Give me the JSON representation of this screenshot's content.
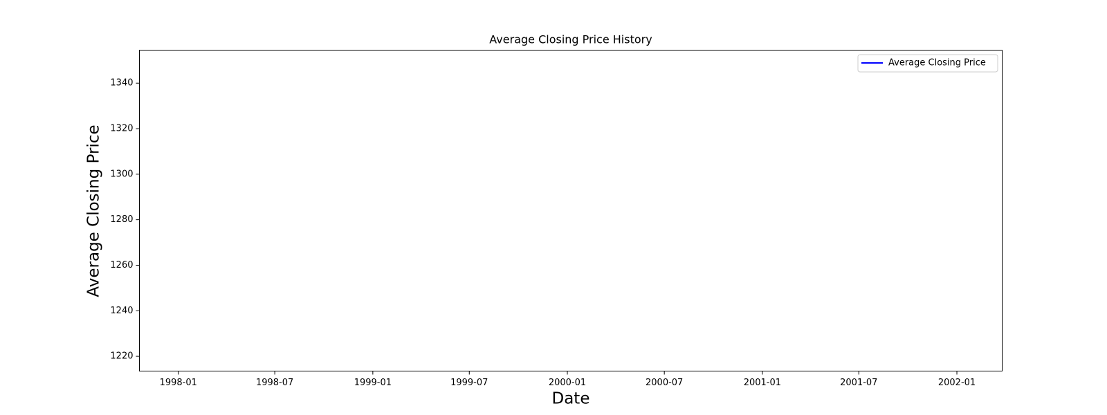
{
  "chart_data": {
    "type": "line",
    "title": "Average Closing Price History",
    "xlabel": "Date",
    "ylabel": "Average Closing Price",
    "x_ticks": [
      "1998-01",
      "1998-07",
      "1999-01",
      "1999-07",
      "2000-01",
      "2000-07",
      "2001-01",
      "2001-07",
      "2002-01"
    ],
    "y_ticks": [
      1220,
      1240,
      1260,
      1280,
      1300,
      1320,
      1340
    ],
    "xlim": [
      "1997-10-20",
      "2002-03-27"
    ],
    "ylim": [
      1213.5,
      1354.5
    ],
    "grid": false,
    "legend_position": "top-right",
    "series": [
      {
        "name": "Average Closing Price",
        "color": "#0000ff",
        "x": [],
        "y": []
      }
    ]
  }
}
